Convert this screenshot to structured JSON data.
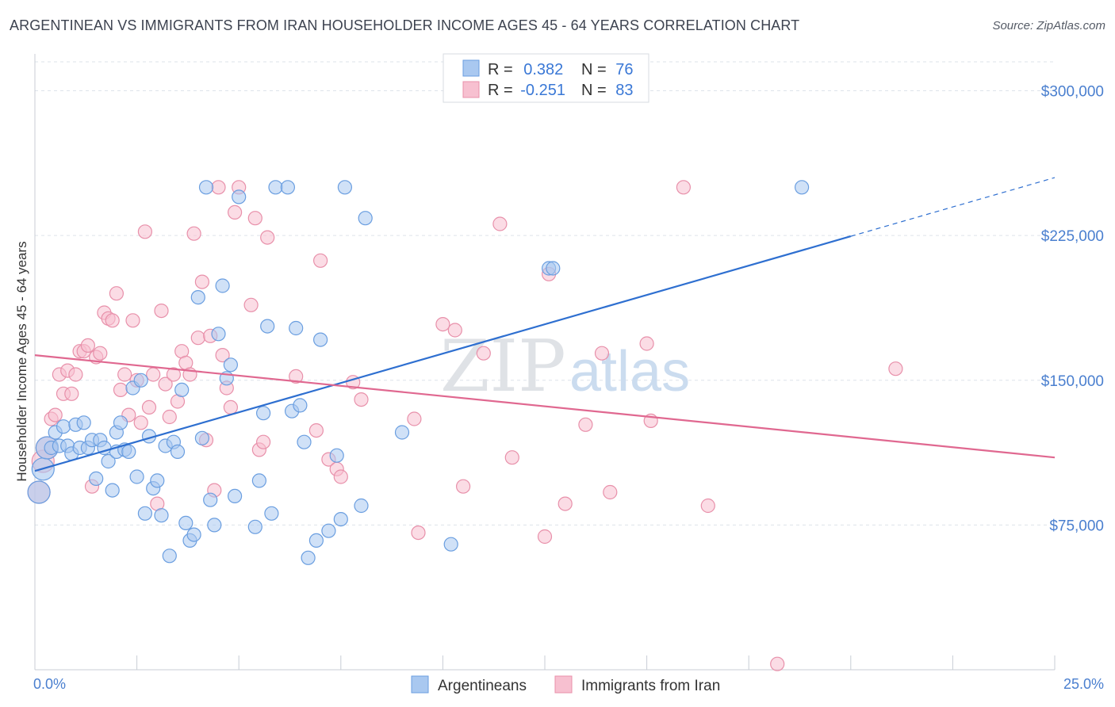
{
  "title": "ARGENTINEAN VS IMMIGRANTS FROM IRAN HOUSEHOLDER INCOME AGES 45 - 64 YEARS CORRELATION CHART",
  "source": "Source: ZipAtlas.com",
  "watermark": {
    "zip": "ZIP",
    "atlas": "atlas"
  },
  "legend_top": [
    {
      "r_label": "R = ",
      "r_value": "0.382",
      "n_label": "N = ",
      "n_value": "76"
    },
    {
      "r_label": "R = ",
      "r_value": "-0.251",
      "n_label": "N = ",
      "n_value": "83"
    }
  ],
  "colors": {
    "blue_fill": "#a9c8f0",
    "blue_stroke": "#6a9ee0",
    "blue_line": "#2e6fd0",
    "pink_fill": "#f7c0d0",
    "pink_stroke": "#e890aa",
    "pink_line": "#e06890",
    "value_text": "#3a78d6",
    "grid": "#dde3ea"
  },
  "chart_data": {
    "type": "scatter",
    "xlabel": "",
    "ylabel": "Householder Income Ages 45 - 64 years",
    "xlim": [
      0,
      25
    ],
    "ylim": [
      0,
      315000
    ],
    "x_tick_labels": [
      "0.0%",
      "25.0%"
    ],
    "y_ticks": [
      75000,
      150000,
      225000,
      300000
    ],
    "y_tick_labels": [
      "$75,000",
      "$150,000",
      "$225,000",
      "$300,000"
    ],
    "series": [
      {
        "name": "Argentineans",
        "r": 0.382,
        "n": 76,
        "trend": {
          "x0": 0,
          "y0": 103000,
          "x1": 25,
          "y1": 255000,
          "solid_until_x": 20
        },
        "points": [
          [
            0.1,
            92000
          ],
          [
            0.2,
            104000
          ],
          [
            0.3,
            115000
          ],
          [
            0.4,
            115000
          ],
          [
            0.5,
            123000
          ],
          [
            0.6,
            116000
          ],
          [
            0.7,
            126000
          ],
          [
            0.8,
            116000
          ],
          [
            0.9,
            112000
          ],
          [
            1.0,
            127000
          ],
          [
            1.1,
            115000
          ],
          [
            1.2,
            128000
          ],
          [
            1.3,
            115000
          ],
          [
            1.4,
            119000
          ],
          [
            1.5,
            99000
          ],
          [
            1.6,
            119000
          ],
          [
            1.7,
            115000
          ],
          [
            1.8,
            108000
          ],
          [
            1.9,
            93000
          ],
          [
            2.0,
            123000
          ],
          [
            2.0,
            113000
          ],
          [
            2.1,
            128000
          ],
          [
            2.2,
            114000
          ],
          [
            2.3,
            113000
          ],
          [
            2.4,
            146000
          ],
          [
            2.5,
            100000
          ],
          [
            2.6,
            150000
          ],
          [
            2.7,
            81000
          ],
          [
            2.8,
            121000
          ],
          [
            2.9,
            94000
          ],
          [
            3.0,
            98000
          ],
          [
            3.1,
            80000
          ],
          [
            3.2,
            116000
          ],
          [
            3.3,
            59000
          ],
          [
            3.4,
            118000
          ],
          [
            3.5,
            113000
          ],
          [
            3.6,
            145000
          ],
          [
            3.7,
            76000
          ],
          [
            3.8,
            67000
          ],
          [
            3.9,
            70000
          ],
          [
            4.0,
            193000
          ],
          [
            4.1,
            120000
          ],
          [
            4.2,
            250000
          ],
          [
            4.3,
            88000
          ],
          [
            4.4,
            75000
          ],
          [
            4.5,
            174000
          ],
          [
            4.6,
            199000
          ],
          [
            4.7,
            151000
          ],
          [
            4.8,
            158000
          ],
          [
            4.9,
            90000
          ],
          [
            5.0,
            245000
          ],
          [
            5.4,
            74000
          ],
          [
            5.5,
            98000
          ],
          [
            5.6,
            133000
          ],
          [
            5.7,
            178000
          ],
          [
            5.8,
            81000
          ],
          [
            5.9,
            250000
          ],
          [
            6.2,
            250000
          ],
          [
            6.3,
            134000
          ],
          [
            6.4,
            177000
          ],
          [
            6.5,
            137000
          ],
          [
            6.6,
            118000
          ],
          [
            6.7,
            58000
          ],
          [
            6.9,
            67000
          ],
          [
            7.0,
            171000
          ],
          [
            7.2,
            72000
          ],
          [
            7.4,
            111000
          ],
          [
            7.5,
            78000
          ],
          [
            7.6,
            250000
          ],
          [
            8.0,
            85000
          ],
          [
            8.1,
            234000
          ],
          [
            9.0,
            123000
          ],
          [
            10.2,
            65000
          ],
          [
            12.6,
            208000
          ],
          [
            12.7,
            208000
          ],
          [
            18.8,
            250000
          ]
        ]
      },
      {
        "name": "Immigrants from Iran",
        "r": -0.251,
        "n": 83,
        "trend": {
          "x0": 0,
          "y0": 163000,
          "x1": 25,
          "y1": 110000
        },
        "points": [
          [
            0.1,
            92000
          ],
          [
            0.2,
            108000
          ],
          [
            0.3,
            115000
          ],
          [
            0.4,
            130000
          ],
          [
            0.5,
            132000
          ],
          [
            0.6,
            153000
          ],
          [
            0.7,
            143000
          ],
          [
            0.8,
            155000
          ],
          [
            0.9,
            143000
          ],
          [
            1.0,
            153000
          ],
          [
            1.1,
            165000
          ],
          [
            1.2,
            165000
          ],
          [
            1.3,
            168000
          ],
          [
            1.4,
            95000
          ],
          [
            1.5,
            162000
          ],
          [
            1.6,
            164000
          ],
          [
            1.7,
            185000
          ],
          [
            1.8,
            182000
          ],
          [
            1.9,
            181000
          ],
          [
            2.0,
            195000
          ],
          [
            2.1,
            145000
          ],
          [
            2.2,
            153000
          ],
          [
            2.3,
            132000
          ],
          [
            2.4,
            181000
          ],
          [
            2.5,
            150000
          ],
          [
            2.6,
            128000
          ],
          [
            2.7,
            227000
          ],
          [
            2.8,
            136000
          ],
          [
            2.9,
            153000
          ],
          [
            3.0,
            86000
          ],
          [
            3.1,
            186000
          ],
          [
            3.2,
            148000
          ],
          [
            3.3,
            131000
          ],
          [
            3.4,
            153000
          ],
          [
            3.5,
            139000
          ],
          [
            3.6,
            165000
          ],
          [
            3.7,
            159000
          ],
          [
            3.8,
            153000
          ],
          [
            3.9,
            226000
          ],
          [
            4.0,
            172000
          ],
          [
            4.1,
            201000
          ],
          [
            4.2,
            119000
          ],
          [
            4.3,
            173000
          ],
          [
            4.4,
            93000
          ],
          [
            4.5,
            250000
          ],
          [
            4.6,
            163000
          ],
          [
            4.7,
            146000
          ],
          [
            4.8,
            136000
          ],
          [
            4.9,
            237000
          ],
          [
            5.0,
            250000
          ],
          [
            5.3,
            189000
          ],
          [
            5.4,
            234000
          ],
          [
            5.5,
            114000
          ],
          [
            5.6,
            118000
          ],
          [
            5.7,
            224000
          ],
          [
            6.4,
            152000
          ],
          [
            6.9,
            124000
          ],
          [
            7.0,
            212000
          ],
          [
            7.2,
            109000
          ],
          [
            7.4,
            104000
          ],
          [
            7.5,
            100000
          ],
          [
            7.8,
            149000
          ],
          [
            8.0,
            140000
          ],
          [
            9.3,
            130000
          ],
          [
            9.4,
            71000
          ],
          [
            10.0,
            179000
          ],
          [
            10.3,
            176000
          ],
          [
            10.5,
            95000
          ],
          [
            11.0,
            164000
          ],
          [
            11.4,
            231000
          ],
          [
            11.7,
            110000
          ],
          [
            12.5,
            69000
          ],
          [
            12.6,
            205000
          ],
          [
            13.0,
            86000
          ],
          [
            13.5,
            127000
          ],
          [
            13.9,
            164000
          ],
          [
            14.1,
            92000
          ],
          [
            15.0,
            169000
          ],
          [
            15.1,
            129000
          ],
          [
            15.9,
            250000
          ],
          [
            16.5,
            85000
          ],
          [
            18.2,
            3000
          ],
          [
            21.1,
            156000
          ]
        ]
      }
    ],
    "legend": [
      "Argentineans",
      "Immigrants from Iran"
    ],
    "grid": true
  }
}
